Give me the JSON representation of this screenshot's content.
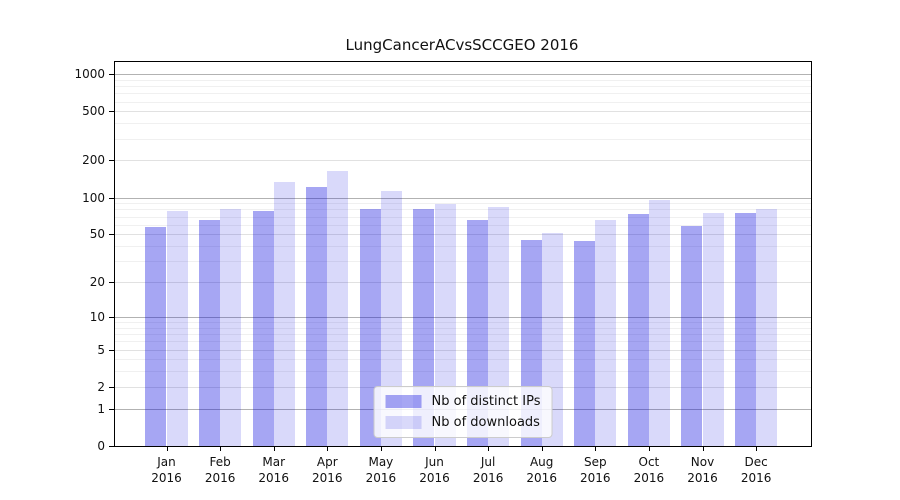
{
  "title": "LungCancerACvsSCCGEO 2016",
  "colors": {
    "bar_distinct_ips": "#a6a6f3",
    "bar_downloads": "#d9d9fa",
    "bar_distinct_ips_rgba": "rgba(0,0,220,0.35)",
    "bar_downloads_rgba": "rgba(0,0,222,0.15)",
    "grid_major": "#b2b2b2",
    "grid_mid": "#e1e1e1",
    "grid_minor": "#f0f0f0",
    "axis": "#000000"
  },
  "chart_data": {
    "type": "bar",
    "title": "LungCancerACvsSCCGEO 2016",
    "xlabel": "",
    "ylabel": "",
    "yscale": "log10(1+x)",
    "grid": true,
    "legend_position": "lower center",
    "categories": [
      "Jan 2016",
      "Feb 2016",
      "Mar 2016",
      "Apr 2016",
      "May 2016",
      "Jun 2016",
      "Jul 2016",
      "Aug 2016",
      "Sep 2016",
      "Oct 2016",
      "Nov 2016",
      "Dec 2016"
    ],
    "y_ticks": [
      0,
      1,
      2,
      5,
      10,
      20,
      50,
      100,
      200,
      500,
      1000
    ],
    "ylim": [
      0,
      1250
    ],
    "series": [
      {
        "name": "Nb of distinct IPs",
        "color": "rgba(0,0,220,0.35)",
        "values": [
          57,
          66,
          77,
          123,
          80,
          81,
          66,
          45,
          44,
          74,
          59,
          75
        ]
      },
      {
        "name": "Nb of downloads",
        "color": "rgba(0,0,222,0.15)",
        "values": [
          77,
          80,
          135,
          163,
          114,
          89,
          83,
          51,
          65,
          95,
          75,
          80
        ]
      }
    ]
  }
}
